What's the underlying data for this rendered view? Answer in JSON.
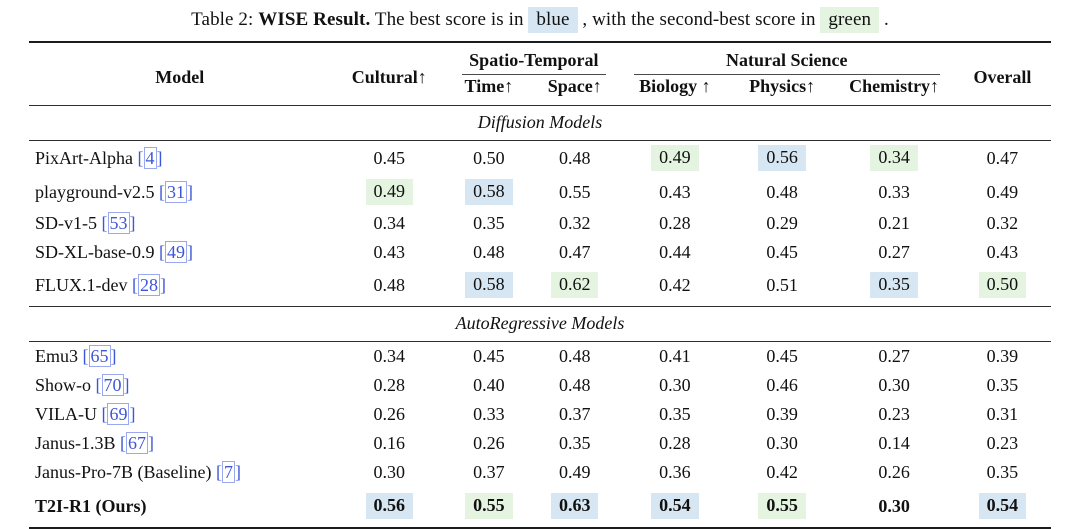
{
  "colors": {
    "best_highlight": "#d6e6f2",
    "second_highlight": "#e4f4e0",
    "link_blue": "#3d56d8",
    "rule_dark": "#1c1c1c"
  },
  "caption": {
    "label": "Table 2:",
    "title": "WISE Result.",
    "text_before_blue": "The best score is in",
    "blue_word": "blue",
    "text_middle": ", with the second-best score in",
    "green_word": "green",
    "text_end": "."
  },
  "header": {
    "model": "Model",
    "cultural": "Cultural↑",
    "spatio_temporal": "Spatio-Temporal",
    "natural_science": "Natural Science",
    "overall": "Overall",
    "sub": [
      "Time↑",
      "Space↑",
      "Biology ↑",
      "Physics↑",
      "Chemistry↑"
    ]
  },
  "chart_data": {
    "type": "table",
    "title": "WISE Result",
    "columns": [
      "Model",
      "Cultural",
      "Time",
      "Space",
      "Biology",
      "Physics",
      "Chemistry",
      "Overall"
    ],
    "highlight_legend": {
      "blue": "best score",
      "green": "second-best score"
    },
    "sections": [
      {
        "label": "Diffusion Models",
        "rows": [
          {
            "model": "PixArt-Alpha",
            "cite": "[4]",
            "bold": false,
            "cells": [
              {
                "v": "0.45",
                "h": ""
              },
              {
                "v": "0.50",
                "h": ""
              },
              {
                "v": "0.48",
                "h": ""
              },
              {
                "v": "0.49",
                "h": "green"
              },
              {
                "v": "0.56",
                "h": "blue"
              },
              {
                "v": "0.34",
                "h": "green"
              },
              {
                "v": "0.47",
                "h": ""
              }
            ]
          },
          {
            "model": "playground-v2.5",
            "cite": "[31]",
            "bold": false,
            "cells": [
              {
                "v": "0.49",
                "h": "green"
              },
              {
                "v": "0.58",
                "h": "blue"
              },
              {
                "v": "0.55",
                "h": ""
              },
              {
                "v": "0.43",
                "h": ""
              },
              {
                "v": "0.48",
                "h": ""
              },
              {
                "v": "0.33",
                "h": ""
              },
              {
                "v": "0.49",
                "h": ""
              }
            ]
          },
          {
            "model": "SD-v1-5",
            "cite": "[53]",
            "bold": false,
            "cells": [
              {
                "v": "0.34",
                "h": ""
              },
              {
                "v": "0.35",
                "h": ""
              },
              {
                "v": "0.32",
                "h": ""
              },
              {
                "v": "0.28",
                "h": ""
              },
              {
                "v": "0.29",
                "h": ""
              },
              {
                "v": "0.21",
                "h": ""
              },
              {
                "v": "0.32",
                "h": ""
              }
            ]
          },
          {
            "model": "SD-XL-base-0.9",
            "cite": "[49]",
            "bold": false,
            "cells": [
              {
                "v": "0.43",
                "h": ""
              },
              {
                "v": "0.48",
                "h": ""
              },
              {
                "v": "0.47",
                "h": ""
              },
              {
                "v": "0.44",
                "h": ""
              },
              {
                "v": "0.45",
                "h": ""
              },
              {
                "v": "0.27",
                "h": ""
              },
              {
                "v": "0.43",
                "h": ""
              }
            ]
          },
          {
            "model": "FLUX.1-dev",
            "cite": "[28]",
            "bold": false,
            "cells": [
              {
                "v": "0.48",
                "h": ""
              },
              {
                "v": "0.58",
                "h": "blue"
              },
              {
                "v": "0.62",
                "h": "green"
              },
              {
                "v": "0.42",
                "h": ""
              },
              {
                "v": "0.51",
                "h": ""
              },
              {
                "v": "0.35",
                "h": "blue"
              },
              {
                "v": "0.50",
                "h": "green"
              }
            ]
          }
        ]
      },
      {
        "label": "AutoRegressive Models",
        "rows": [
          {
            "model": "Emu3",
            "cite": "[65]",
            "bold": false,
            "cells": [
              {
                "v": "0.34",
                "h": ""
              },
              {
                "v": "0.45",
                "h": ""
              },
              {
                "v": "0.48",
                "h": ""
              },
              {
                "v": "0.41",
                "h": ""
              },
              {
                "v": "0.45",
                "h": ""
              },
              {
                "v": "0.27",
                "h": ""
              },
              {
                "v": "0.39",
                "h": ""
              }
            ]
          },
          {
            "model": "Show-o",
            "cite": "[70]",
            "bold": false,
            "cells": [
              {
                "v": "0.28",
                "h": ""
              },
              {
                "v": "0.40",
                "h": ""
              },
              {
                "v": "0.48",
                "h": ""
              },
              {
                "v": "0.30",
                "h": ""
              },
              {
                "v": "0.46",
                "h": ""
              },
              {
                "v": "0.30",
                "h": ""
              },
              {
                "v": "0.35",
                "h": ""
              }
            ]
          },
          {
            "model": "VILA-U",
            "cite": "[69]",
            "bold": false,
            "cells": [
              {
                "v": "0.26",
                "h": ""
              },
              {
                "v": "0.33",
                "h": ""
              },
              {
                "v": "0.37",
                "h": ""
              },
              {
                "v": "0.35",
                "h": ""
              },
              {
                "v": "0.39",
                "h": ""
              },
              {
                "v": "0.23",
                "h": ""
              },
              {
                "v": "0.31",
                "h": ""
              }
            ]
          },
          {
            "model": "Janus-1.3B",
            "cite": "[67]",
            "bold": false,
            "cells": [
              {
                "v": "0.16",
                "h": ""
              },
              {
                "v": "0.26",
                "h": ""
              },
              {
                "v": "0.35",
                "h": ""
              },
              {
                "v": "0.28",
                "h": ""
              },
              {
                "v": "0.30",
                "h": ""
              },
              {
                "v": "0.14",
                "h": ""
              },
              {
                "v": "0.23",
                "h": ""
              }
            ]
          },
          {
            "model": "Janus-Pro-7B (Baseline)",
            "cite": "[7]",
            "bold": false,
            "cells": [
              {
                "v": "0.30",
                "h": ""
              },
              {
                "v": "0.37",
                "h": ""
              },
              {
                "v": "0.49",
                "h": ""
              },
              {
                "v": "0.36",
                "h": ""
              },
              {
                "v": "0.42",
                "h": ""
              },
              {
                "v": "0.26",
                "h": ""
              },
              {
                "v": "0.35",
                "h": ""
              }
            ]
          },
          {
            "model": "T2I-R1 (Ours)",
            "cite": "",
            "bold": true,
            "cells": [
              {
                "v": "0.56",
                "h": "blue"
              },
              {
                "v": "0.55",
                "h": "green"
              },
              {
                "v": "0.63",
                "h": "blue"
              },
              {
                "v": "0.54",
                "h": "blue"
              },
              {
                "v": "0.55",
                "h": "green"
              },
              {
                "v": "0.30",
                "h": ""
              },
              {
                "v": "0.54",
                "h": "blue"
              }
            ]
          }
        ]
      }
    ]
  }
}
